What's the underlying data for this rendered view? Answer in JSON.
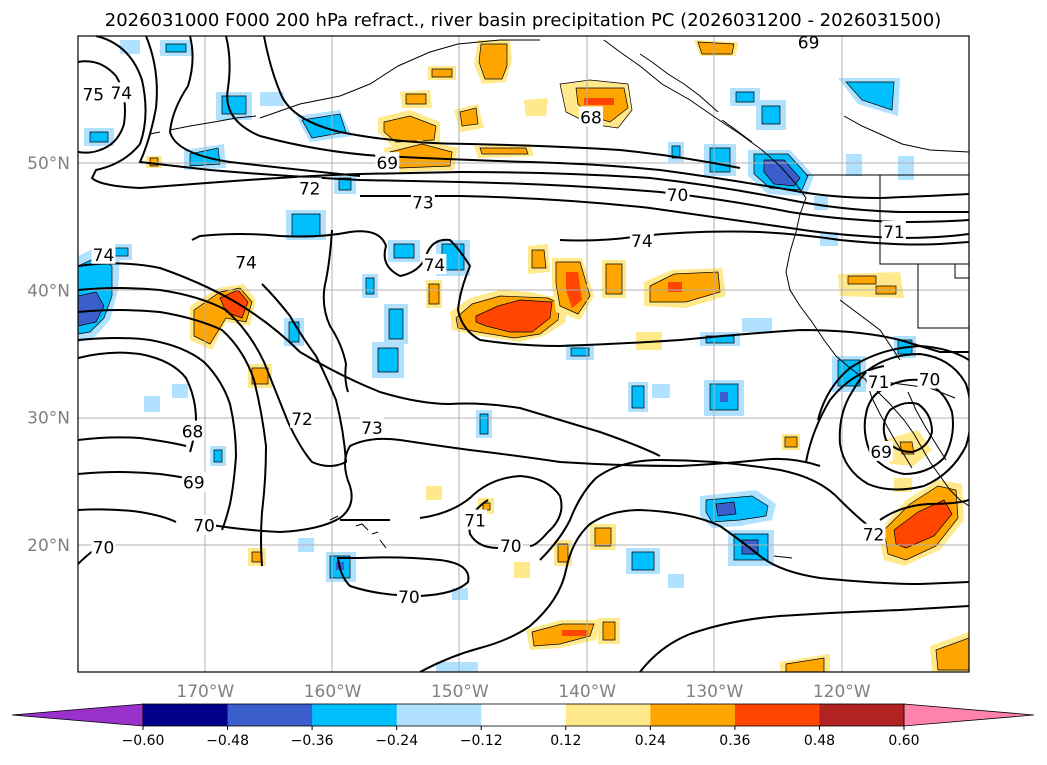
{
  "chart_data": {
    "type": "contour",
    "title": "2026031000 F000 200 hPa refract., river basin precipitation PC (2026031200 - 2026031500)",
    "extent": {
      "lon": [
        -180,
        -110
      ],
      "lat": [
        10,
        60
      ]
    },
    "lon_ticks": [
      {
        "lon": -170,
        "label": "170°W"
      },
      {
        "lon": -160,
        "label": "160°W"
      },
      {
        "lon": -150,
        "label": "150°W"
      },
      {
        "lon": -140,
        "label": "140°W"
      },
      {
        "lon": -130,
        "label": "130°W"
      },
      {
        "lon": -120,
        "label": "120°W"
      }
    ],
    "lat_ticks": [
      {
        "lat": 20,
        "label": "20°N"
      },
      {
        "lat": 30,
        "label": "30°N"
      },
      {
        "lat": 40,
        "label": "40°N"
      },
      {
        "lat": 50,
        "label": "50°N"
      }
    ],
    "colorbar": {
      "bounds": [
        -0.72,
        -0.6,
        -0.48,
        -0.36,
        -0.24,
        -0.12,
        0.12,
        0.24,
        0.36,
        0.48,
        0.6,
        0.72
      ],
      "colors": [
        "#9932cc",
        "#00008b",
        "#3a5fcd",
        "#00bfff",
        "#b0e2ff",
        "#ffffff",
        "#ffe98a",
        "#ffa500",
        "#ff4500",
        "#b22222",
        "#ff82ab"
      ],
      "extend_colors": {
        "min": "#9932cc",
        "max": "#ff82ab"
      },
      "tick_labels": [
        "−0.60",
        "−0.48",
        "−0.36",
        "−0.24",
        "−0.12",
        "0.12",
        "0.24",
        "0.36",
        "0.48",
        "0.60"
      ]
    },
    "contour_labels": [
      {
        "text": "69",
        "lon": -122.6,
        "lat": 59.5
      },
      {
        "text": "75",
        "lon": -178.8,
        "lat": 55.4
      },
      {
        "text": "74",
        "lon": -176.6,
        "lat": 55.5
      },
      {
        "text": "68",
        "lon": -139.7,
        "lat": 53.6
      },
      {
        "text": "69",
        "lon": -155.7,
        "lat": 50.0
      },
      {
        "text": "72",
        "lon": -161.8,
        "lat": 48.0
      },
      {
        "text": "73",
        "lon": -152.9,
        "lat": 46.9
      },
      {
        "text": "70",
        "lon": -132.9,
        "lat": 47.5
      },
      {
        "text": "71",
        "lon": -115.9,
        "lat": 44.6
      },
      {
        "text": "74",
        "lon": -135.7,
        "lat": 43.9
      },
      {
        "text": "74",
        "lon": -178.0,
        "lat": 42.8
      },
      {
        "text": "74",
        "lon": -166.8,
        "lat": 42.2
      },
      {
        "text": "74",
        "lon": -152.0,
        "lat": 42.0
      },
      {
        "text": "71",
        "lon": -117.1,
        "lat": 32.8
      },
      {
        "text": "70",
        "lon": -113.1,
        "lat": 33.0
      },
      {
        "text": "72",
        "lon": -162.4,
        "lat": 29.9
      },
      {
        "text": "73",
        "lon": -156.9,
        "lat": 29.2
      },
      {
        "text": "68",
        "lon": -171.0,
        "lat": 28.9
      },
      {
        "text": "69",
        "lon": -116.9,
        "lat": 27.3
      },
      {
        "text": "69",
        "lon": -170.9,
        "lat": 24.9
      },
      {
        "text": "71",
        "lon": -148.8,
        "lat": 21.9
      },
      {
        "text": "70",
        "lon": -170.1,
        "lat": 21.5
      },
      {
        "text": "72",
        "lon": -117.5,
        "lat": 20.8
      },
      {
        "text": "70",
        "lon": -178.0,
        "lat": 19.8
      },
      {
        "text": "70",
        "lon": -146.0,
        "lat": 19.9
      },
      {
        "text": "70",
        "lon": -154.0,
        "lat": 15.9
      }
    ]
  }
}
